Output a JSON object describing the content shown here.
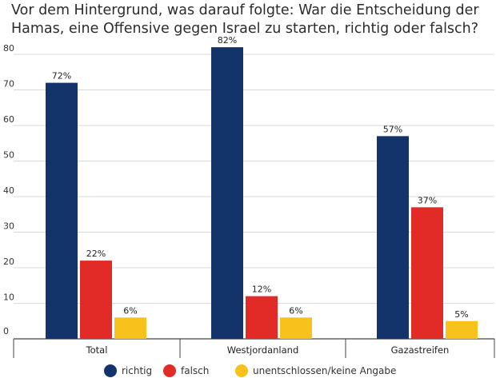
{
  "chart_data": {
    "type": "bar",
    "title": "Vor dem Hintergrund, was darauf folgte: War die Entscheidung der Hamas, eine Offensive gegen Israel zu starten, richtig oder falsch?",
    "categories": [
      "Total",
      "Westjordanland",
      "Gazastreifen"
    ],
    "series": [
      {
        "name": "richtig",
        "values": [
          72,
          82,
          57
        ],
        "labels": [
          "72%",
          "82%",
          "57%"
        ],
        "color": "#13336b"
      },
      {
        "name": "falsch",
        "values": [
          22,
          12,
          37
        ],
        "labels": [
          "22%",
          "12%",
          "37%"
        ],
        "color": "#e22a26"
      },
      {
        "name": "unentschlossen/keine Angabe",
        "values": [
          6,
          6,
          5
        ],
        "labels": [
          "6%",
          "6%",
          "5%"
        ],
        "color": "#f7c21c"
      }
    ],
    "y_ticks": [
      "0",
      "10",
      "20",
      "30",
      "40",
      "50",
      "60",
      "70",
      "80"
    ],
    "ylim": [
      0,
      80
    ],
    "grid": true,
    "legend": "bottom"
  }
}
